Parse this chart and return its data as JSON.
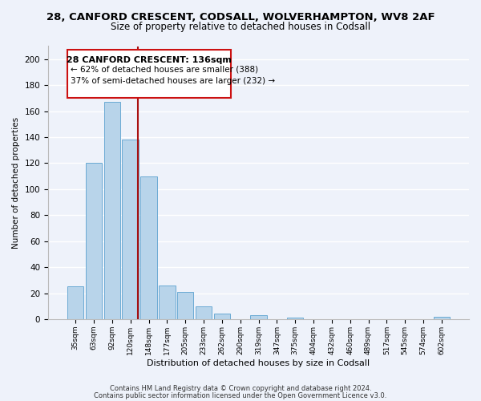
{
  "title_line1": "28, CANFORD CRESCENT, CODSALL, WOLVERHAMPTON, WV8 2AF",
  "title_line2": "Size of property relative to detached houses in Codsall",
  "xlabel": "Distribution of detached houses by size in Codsall",
  "ylabel": "Number of detached properties",
  "bar_color": "#b8d4ea",
  "bar_edge_color": "#6aaad4",
  "categories": [
    "35sqm",
    "63sqm",
    "92sqm",
    "120sqm",
    "148sqm",
    "177sqm",
    "205sqm",
    "233sqm",
    "262sqm",
    "290sqm",
    "319sqm",
    "347sqm",
    "375sqm",
    "404sqm",
    "432sqm",
    "460sqm",
    "489sqm",
    "517sqm",
    "545sqm",
    "574sqm",
    "602sqm"
  ],
  "values": [
    25,
    120,
    167,
    138,
    110,
    26,
    21,
    10,
    4,
    0,
    3,
    0,
    1,
    0,
    0,
    0,
    0,
    0,
    0,
    0,
    2
  ],
  "ylim": [
    0,
    210
  ],
  "yticks": [
    0,
    20,
    40,
    60,
    80,
    100,
    120,
    140,
    160,
    180,
    200
  ],
  "annotation_title": "28 CANFORD CRESCENT: 136sqm",
  "annotation_line2": "← 62% of detached houses are smaller (388)",
  "annotation_line3": "37% of semi-detached houses are larger (232) →",
  "footnote1": "Contains HM Land Registry data © Crown copyright and database right 2024.",
  "footnote2": "Contains public sector information licensed under the Open Government Licence v3.0.",
  "background_color": "#eef2fa",
  "grid_color": "#ffffff",
  "vline_color": "#aa1111"
}
